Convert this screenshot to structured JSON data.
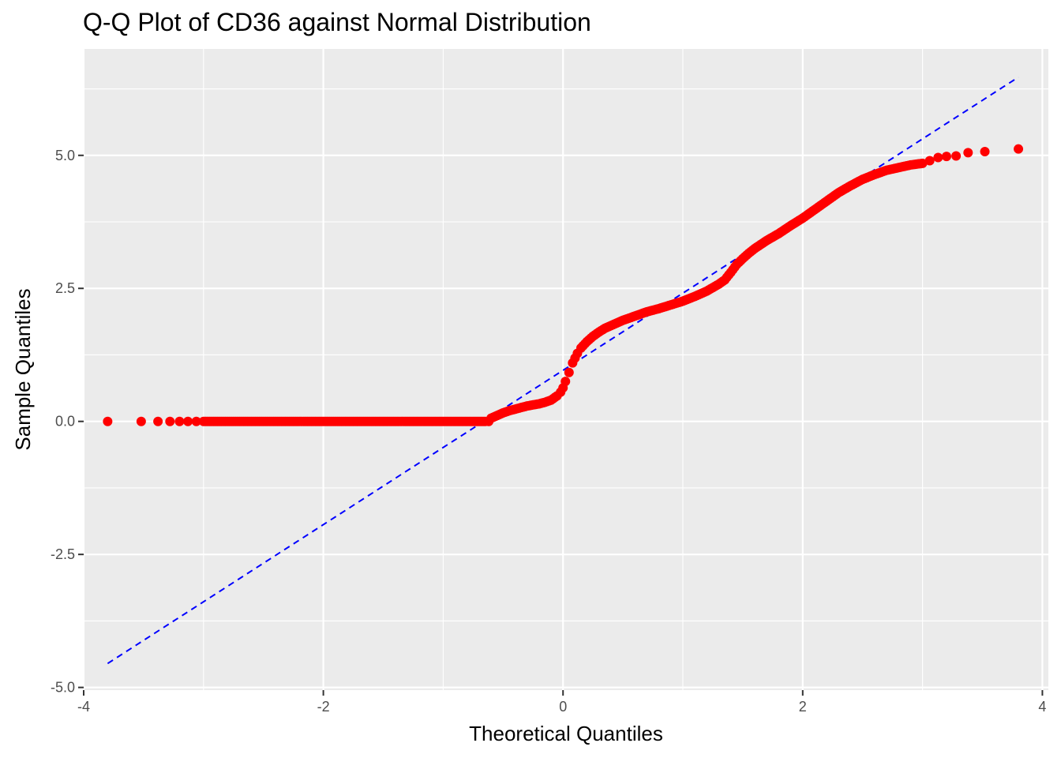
{
  "chart_data": {
    "type": "scatter",
    "title": "Q-Q Plot of CD36 against Normal Distribution",
    "xlabel": "Theoretical Quantiles",
    "ylabel": "Sample Quantiles",
    "xlim": [
      -4.0,
      4.05
    ],
    "ylim": [
      -5.05,
      7.0
    ],
    "x_ticks": [
      -4,
      -2,
      0,
      2,
      4
    ],
    "x_tick_labels": [
      "-4",
      "-2",
      "0",
      "2",
      "4"
    ],
    "y_ticks": [
      -5.0,
      -2.5,
      0.0,
      2.5,
      5.0
    ],
    "y_tick_labels": [
      "-5.0",
      "-2.5",
      "0.0",
      "2.5",
      "5.0"
    ],
    "grid": true,
    "background": "#ebebeb",
    "point_color": "#ff0000",
    "line_color": "#0000ff",
    "points": {
      "x": [
        -3.8,
        -3.52,
        -3.38,
        -3.28,
        -3.2,
        -3.13,
        -3.06,
        -3.0,
        -2.6,
        -2.2,
        -1.8,
        -1.4,
        -1.0,
        -0.8,
        -0.7,
        -0.65,
        -0.62,
        -0.6,
        -0.55,
        -0.5,
        -0.45,
        -0.4,
        -0.35,
        -0.3,
        -0.25,
        -0.2,
        -0.15,
        -0.1,
        -0.05,
        -0.02,
        0.0,
        0.02,
        0.05,
        0.08,
        0.12,
        0.15,
        0.2,
        0.25,
        0.3,
        0.35,
        0.4,
        0.5,
        0.6,
        0.7,
        0.8,
        0.9,
        1.0,
        1.1,
        1.2,
        1.3,
        1.35,
        1.4,
        1.45,
        1.5,
        1.55,
        1.6,
        1.7,
        1.8,
        1.9,
        2.0,
        2.1,
        2.2,
        2.3,
        2.4,
        2.5,
        2.6,
        2.7,
        2.8,
        2.9,
        3.0,
        3.06,
        3.13,
        3.2,
        3.28,
        3.38,
        3.52,
        3.8
      ],
      "y": [
        0.0,
        0.0,
        0.0,
        0.0,
        0.0,
        0.0,
        0.0,
        0.0,
        0.0,
        0.0,
        0.0,
        0.0,
        0.0,
        0.0,
        0.0,
        0.0,
        0.0,
        0.06,
        0.11,
        0.16,
        0.2,
        0.23,
        0.26,
        0.29,
        0.31,
        0.33,
        0.36,
        0.4,
        0.48,
        0.55,
        0.63,
        0.75,
        0.92,
        1.1,
        1.28,
        1.38,
        1.5,
        1.6,
        1.68,
        1.75,
        1.8,
        1.9,
        1.98,
        2.06,
        2.12,
        2.19,
        2.26,
        2.35,
        2.45,
        2.58,
        2.66,
        2.8,
        2.95,
        3.06,
        3.16,
        3.25,
        3.4,
        3.53,
        3.68,
        3.82,
        3.98,
        4.14,
        4.3,
        4.43,
        4.55,
        4.64,
        4.72,
        4.77,
        4.82,
        4.85,
        4.9,
        4.96,
        4.98,
        4.99,
        5.05,
        5.07,
        5.12
      ]
    },
    "reference_line": {
      "x": [
        -3.8,
        3.8
      ],
      "y": [
        -4.55,
        6.47
      ]
    }
  }
}
